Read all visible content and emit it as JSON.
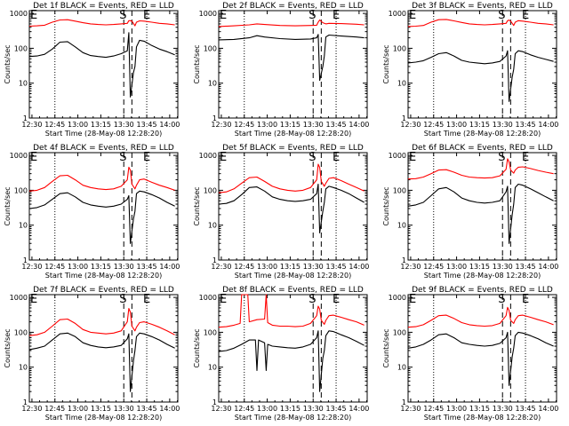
{
  "colors": {
    "events": "#000000",
    "lld": "#ff0000",
    "axis": "#000000",
    "background": "#ffffff"
  },
  "chart_data": [
    {
      "type": "line",
      "title": "Det 1f BLACK = Events, RED = LLD",
      "xlabel": "Start Time (28-May-08 12:28:20)",
      "ylabel": "Counts/sec",
      "x_ticks": [
        "12:30",
        "12:45",
        "13:00",
        "13:15",
        "13:30",
        "13:45",
        "14:00"
      ],
      "y_ticks": [
        "1",
        "10",
        "100",
        "1000"
      ],
      "ylim": [
        1,
        1200
      ],
      "xlim_minutes": [
        0,
        97
      ],
      "y_scale": "log",
      "markers": {
        "left": "E",
        "s": "S",
        "e": "E"
      },
      "events_times_min": [
        0,
        5,
        10,
        15,
        20,
        25,
        30,
        35,
        40,
        45,
        50,
        55,
        60,
        64,
        65,
        66,
        68,
        69,
        70,
        72,
        75,
        80,
        85,
        90,
        95
      ],
      "events": [
        58,
        60,
        67,
        95,
        150,
        155,
        110,
        75,
        62,
        58,
        55,
        60,
        70,
        85,
        280,
        4,
        20,
        30,
        110,
        170,
        160,
        120,
        95,
        80,
        65
      ],
      "lld_times_min": [
        0,
        5,
        10,
        15,
        20,
        25,
        30,
        35,
        40,
        45,
        50,
        55,
        60,
        64,
        65,
        66,
        67,
        69,
        70,
        72,
        75,
        80,
        85,
        90,
        95
      ],
      "lld": [
        430,
        440,
        460,
        560,
        650,
        660,
        600,
        540,
        500,
        480,
        470,
        480,
        500,
        520,
        620,
        620,
        600,
        440,
        560,
        610,
        600,
        560,
        520,
        500,
        470
      ]
    },
    {
      "type": "line",
      "title": "Det 2f BLACK = Events, RED = LLD",
      "xlabel": "Start Time (28-May-08 12:28:20)",
      "ylabel": "Counts/sec",
      "x_ticks": [
        "12:30",
        "12:45",
        "13:00",
        "13:15",
        "13:30",
        "13:45",
        "14:00"
      ],
      "y_ticks": [
        "1",
        "10",
        "100",
        "1000"
      ],
      "ylim": [
        1,
        1200
      ],
      "xlim_minutes": [
        0,
        97
      ],
      "y_scale": "log",
      "markers": {
        "left": "E",
        "s": "S",
        "e": "E"
      },
      "events_times_min": [
        0,
        10,
        20,
        25,
        30,
        40,
        50,
        60,
        64,
        65,
        66,
        68,
        69,
        70,
        72,
        80,
        90,
        95
      ],
      "events": [
        175,
        180,
        200,
        230,
        210,
        190,
        180,
        185,
        200,
        250,
        12,
        30,
        60,
        210,
        240,
        225,
        210,
        200
      ],
      "lld_times_min": [
        0,
        10,
        20,
        25,
        30,
        40,
        50,
        60,
        64,
        65,
        66,
        68,
        70,
        72,
        80,
        90,
        95
      ],
      "lld": [
        420,
        440,
        470,
        500,
        480,
        450,
        440,
        450,
        460,
        560,
        650,
        540,
        500,
        520,
        510,
        490,
        470
      ]
    },
    {
      "type": "line",
      "title": "Det 3f BLACK = Events, RED = LLD",
      "xlabel": "Start Time (28-May-08 12:28:20)",
      "ylabel": "Counts/sec",
      "x_ticks": [
        "12:30",
        "12:45",
        "13:00",
        "13:15",
        "13:30",
        "13:45",
        "14:00"
      ],
      "y_ticks": [
        "1",
        "10",
        "100",
        "1000"
      ],
      "ylim": [
        1,
        1200
      ],
      "xlim_minutes": [
        0,
        97
      ],
      "y_scale": "log",
      "markers": {
        "left": "E",
        "s": "S",
        "e": "E"
      },
      "events_times_min": [
        0,
        5,
        10,
        15,
        20,
        25,
        30,
        35,
        40,
        45,
        50,
        55,
        60,
        64,
        65,
        66,
        68,
        69,
        70,
        72,
        75,
        80,
        85,
        90,
        95
      ],
      "events": [
        38,
        40,
        44,
        55,
        70,
        75,
        60,
        45,
        40,
        38,
        36,
        38,
        42,
        60,
        85,
        3,
        15,
        25,
        70,
        85,
        80,
        65,
        55,
        48,
        42
      ],
      "lld_times_min": [
        0,
        5,
        10,
        15,
        20,
        25,
        30,
        35,
        40,
        45,
        50,
        55,
        60,
        64,
        65,
        66,
        67,
        69,
        70,
        72,
        75,
        80,
        85,
        90,
        95
      ],
      "lld": [
        420,
        430,
        450,
        560,
        660,
        670,
        610,
        550,
        500,
        480,
        470,
        480,
        500,
        520,
        620,
        640,
        600,
        450,
        560,
        620,
        600,
        560,
        520,
        500,
        470
      ]
    },
    {
      "type": "line",
      "title": "Det 4f BLACK = Events, RED = LLD",
      "xlabel": "Start Time (28-May-08 12:28:20)",
      "ylabel": "Counts/sec",
      "x_ticks": [
        "12:30",
        "12:45",
        "13:00",
        "13:15",
        "13:30",
        "13:45",
        "14:00"
      ],
      "y_ticks": [
        "1",
        "10",
        "100",
        "1000"
      ],
      "ylim": [
        1,
        1200
      ],
      "xlim_minutes": [
        0,
        97
      ],
      "y_scale": "log",
      "markers": {
        "left": "E",
        "s": "S",
        "e": "E"
      },
      "events_times_min": [
        0,
        5,
        10,
        15,
        20,
        25,
        30,
        35,
        40,
        45,
        50,
        55,
        60,
        64,
        65,
        66,
        68,
        69,
        70,
        72,
        75,
        80,
        85,
        90,
        95
      ],
      "events": [
        30,
        32,
        38,
        55,
        80,
        85,
        65,
        45,
        38,
        35,
        33,
        35,
        40,
        55,
        70,
        3,
        15,
        25,
        80,
        95,
        90,
        75,
        60,
        45,
        35
      ],
      "lld_times_min": [
        0,
        5,
        10,
        15,
        20,
        25,
        30,
        35,
        40,
        45,
        50,
        55,
        60,
        64,
        65,
        66,
        67,
        69,
        70,
        72,
        75,
        80,
        85,
        90,
        95
      ],
      "lld": [
        95,
        100,
        120,
        180,
        260,
        270,
        200,
        140,
        120,
        110,
        105,
        110,
        130,
        200,
        460,
        380,
        150,
        110,
        140,
        200,
        210,
        170,
        140,
        120,
        100
      ]
    },
    {
      "type": "line",
      "title": "Det 5f BLACK = Events, RED = LLD",
      "xlabel": "Start Time (28-May-08 12:28:20)",
      "ylabel": "Counts/sec",
      "x_ticks": [
        "12:30",
        "12:45",
        "13:00",
        "13:15",
        "13:30",
        "13:45",
        "14:00"
      ],
      "y_ticks": [
        "1",
        "10",
        "100",
        "1000"
      ],
      "ylim": [
        1,
        1200
      ],
      "xlim_minutes": [
        0,
        97
      ],
      "y_scale": "log",
      "markers": {
        "left": "E",
        "s": "S",
        "e": "E"
      },
      "events_times_min": [
        0,
        5,
        10,
        15,
        20,
        25,
        30,
        35,
        40,
        45,
        50,
        55,
        60,
        64,
        65,
        66,
        68,
        69,
        70,
        72,
        75,
        80,
        85,
        90,
        95
      ],
      "events": [
        40,
        42,
        50,
        75,
        120,
        125,
        95,
        65,
        55,
        50,
        48,
        50,
        55,
        80,
        150,
        6,
        25,
        45,
        110,
        130,
        120,
        100,
        80,
        60,
        45
      ],
      "lld_times_min": [
        0,
        5,
        10,
        15,
        20,
        25,
        30,
        35,
        40,
        45,
        50,
        55,
        60,
        64,
        65,
        66,
        67,
        69,
        70,
        72,
        75,
        80,
        85,
        90,
        95
      ],
      "lld": [
        85,
        90,
        110,
        160,
        230,
        240,
        180,
        130,
        110,
        100,
        95,
        100,
        120,
        200,
        560,
        450,
        180,
        130,
        160,
        220,
        230,
        190,
        150,
        120,
        95
      ]
    },
    {
      "type": "line",
      "title": "Det 6f BLACK = Events, RED = LLD",
      "xlabel": "Start Time (28-May-08 12:28:20)",
      "ylabel": "Counts/sec",
      "x_ticks": [
        "12:30",
        "12:45",
        "13:00",
        "13:15",
        "13:30",
        "13:45",
        "14:00"
      ],
      "y_ticks": [
        "1",
        "10",
        "100",
        "1000"
      ],
      "ylim": [
        1,
        1200
      ],
      "xlim_minutes": [
        0,
        97
      ],
      "y_scale": "log",
      "markers": {
        "left": "E",
        "s": "S",
        "e": "E"
      },
      "events_times_min": [
        0,
        5,
        10,
        15,
        20,
        25,
        30,
        35,
        40,
        45,
        50,
        55,
        60,
        64,
        65,
        66,
        68,
        69,
        70,
        72,
        75,
        80,
        85,
        90,
        95
      ],
      "events": [
        35,
        38,
        45,
        70,
        110,
        120,
        90,
        60,
        50,
        45,
        43,
        45,
        50,
        90,
        130,
        3,
        20,
        40,
        120,
        150,
        140,
        110,
        85,
        65,
        50
      ],
      "lld_times_min": [
        0,
        5,
        10,
        15,
        20,
        25,
        30,
        35,
        40,
        45,
        50,
        55,
        60,
        64,
        65,
        66,
        67,
        69,
        70,
        72,
        75,
        80,
        85,
        90,
        95
      ],
      "lld": [
        210,
        215,
        240,
        300,
        380,
        390,
        330,
        270,
        240,
        230,
        225,
        230,
        260,
        400,
        800,
        650,
        380,
        310,
        380,
        460,
        470,
        420,
        370,
        330,
        300
      ]
    },
    {
      "type": "line",
      "title": "Det 7f BLACK = Events, RED = LLD",
      "xlabel": "Start Time (28-May-08 12:28:20)",
      "ylabel": "Counts/sec",
      "x_ticks": [
        "12:30",
        "12:45",
        "13:00",
        "13:15",
        "13:30",
        "13:45",
        "14:00"
      ],
      "y_ticks": [
        "1",
        "10",
        "100",
        "1000"
      ],
      "ylim": [
        1,
        1200
      ],
      "xlim_minutes": [
        0,
        97
      ],
      "y_scale": "log",
      "markers": {
        "left": "E",
        "s": "S",
        "e": "E"
      },
      "events_times_min": [
        0,
        5,
        10,
        15,
        20,
        25,
        30,
        35,
        40,
        45,
        50,
        55,
        60,
        64,
        65,
        66,
        68,
        69,
        70,
        72,
        75,
        80,
        85,
        90,
        95
      ],
      "events": [
        32,
        35,
        40,
        60,
        90,
        95,
        75,
        50,
        42,
        38,
        36,
        38,
        42,
        65,
        90,
        2,
        15,
        30,
        75,
        95,
        90,
        75,
        60,
        45,
        35
      ],
      "lld_times_min": [
        0,
        5,
        10,
        15,
        20,
        25,
        30,
        35,
        40,
        45,
        50,
        55,
        60,
        64,
        65,
        66,
        67,
        69,
        70,
        72,
        75,
        80,
        85,
        90,
        95
      ],
      "lld": [
        80,
        85,
        100,
        150,
        230,
        240,
        180,
        120,
        100,
        95,
        90,
        95,
        110,
        200,
        480,
        380,
        150,
        110,
        140,
        190,
        200,
        170,
        140,
        110,
        85
      ]
    },
    {
      "type": "line",
      "title": "Det 8f BLACK = Events, RED = LLD",
      "xlabel": "Start Time (28-May-08 12:28:20)",
      "ylabel": "Counts/sec",
      "x_ticks": [
        "12:30",
        "12:45",
        "13:00",
        "13:15",
        "13:30",
        "13:45",
        "14:00"
      ],
      "y_ticks": [
        "1",
        "10",
        "100",
        "1000"
      ],
      "ylim": [
        1,
        1200
      ],
      "xlim_minutes": [
        0,
        97
      ],
      "y_scale": "log",
      "markers": {
        "left": "E",
        "s": "S",
        "e": "E"
      },
      "events_times_min": [
        0,
        5,
        10,
        15,
        20,
        24,
        25,
        26,
        30,
        31,
        32,
        35,
        40,
        45,
        50,
        55,
        60,
        64,
        65,
        66,
        68,
        69,
        70,
        72,
        75,
        80,
        85,
        90,
        95
      ],
      "events": [
        28,
        30,
        35,
        45,
        60,
        60,
        8,
        60,
        50,
        8,
        45,
        40,
        38,
        36,
        35,
        38,
        45,
        70,
        110,
        2,
        18,
        30,
        80,
        110,
        105,
        85,
        70,
        55,
        42
      ],
      "lld_times_min": [
        0,
        5,
        10,
        14,
        15,
        19,
        20,
        25,
        30,
        31,
        32,
        35,
        40,
        45,
        50,
        55,
        60,
        64,
        65,
        66,
        67,
        69,
        70,
        72,
        75,
        80,
        85,
        90,
        95
      ],
      "lld": [
        140,
        145,
        160,
        180,
        1300,
        1300,
        200,
        230,
        240,
        1300,
        190,
        160,
        150,
        150,
        145,
        150,
        180,
        300,
        560,
        460,
        220,
        170,
        220,
        300,
        310,
        270,
        230,
        200,
        160
      ]
    },
    {
      "type": "line",
      "title": "Det 9f BLACK = Events, RED = LLD",
      "xlabel": "Start Time (28-May-08 12:28:20)",
      "ylabel": "Counts/sec",
      "x_ticks": [
        "12:30",
        "12:45",
        "13:00",
        "13:15",
        "13:30",
        "13:45",
        "14:00"
      ],
      "y_ticks": [
        "1",
        "10",
        "100",
        "1000"
      ],
      "ylim": [
        1,
        1200
      ],
      "xlim_minutes": [
        0,
        97
      ],
      "y_scale": "log",
      "markers": {
        "left": "E",
        "s": "S",
        "e": "E"
      },
      "events_times_min": [
        0,
        5,
        10,
        15,
        20,
        25,
        30,
        35,
        40,
        45,
        50,
        55,
        60,
        64,
        65,
        66,
        68,
        69,
        70,
        72,
        75,
        80,
        85,
        90,
        95
      ],
      "events": [
        35,
        38,
        45,
        60,
        85,
        90,
        70,
        50,
        45,
        42,
        40,
        42,
        48,
        70,
        100,
        3,
        20,
        35,
        80,
        100,
        95,
        80,
        65,
        50,
        40
      ],
      "lld_times_min": [
        0,
        5,
        10,
        15,
        20,
        25,
        30,
        35,
        40,
        45,
        50,
        55,
        60,
        64,
        65,
        66,
        67,
        69,
        70,
        72,
        75,
        80,
        85,
        90,
        95
      ],
      "lld": [
        140,
        145,
        165,
        220,
        300,
        310,
        250,
        190,
        165,
        155,
        150,
        155,
        180,
        300,
        520,
        420,
        220,
        180,
        230,
        300,
        310,
        270,
        230,
        200,
        165
      ]
    }
  ]
}
